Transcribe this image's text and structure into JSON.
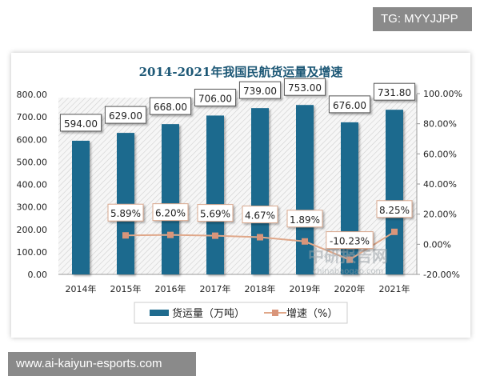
{
  "overlay": {
    "top_right_tag": "TG: MYYJJPP",
    "bottom_left_tag": "www.ai-kaiyun-esports.com"
  },
  "watermark": {
    "name": "中研报告网",
    "url": "chinabaogao.com"
  },
  "chart_data": {
    "type": "bar+line",
    "title": "2014-2021年我国民航货运量及增速",
    "categories": [
      "2014年",
      "2015年",
      "2016年",
      "2017年",
      "2018年",
      "2019年",
      "2020年",
      "2021年"
    ],
    "series": [
      {
        "name": "货运量（万吨）",
        "type": "bar",
        "axis": "left",
        "color": "#1f6b8e",
        "values": [
          594.0,
          629.0,
          668.0,
          706.0,
          739.0,
          753.0,
          676.0,
          731.8
        ],
        "labels": [
          "594.00",
          "629.00",
          "668.00",
          "706.00",
          "739.00",
          "753.00",
          "676.00",
          "731.80"
        ]
      },
      {
        "name": "增速（%）",
        "type": "line",
        "axis": "right",
        "color": "#e0a88a",
        "values": [
          null,
          5.89,
          6.2,
          5.69,
          4.67,
          1.89,
          -10.23,
          8.25
        ],
        "labels": [
          "",
          "5.89%",
          "6.20%",
          "5.69%",
          "4.67%",
          "1.89%",
          "-10.23%",
          "8.25%"
        ]
      }
    ],
    "left_axis": {
      "range": [
        0,
        800
      ],
      "ticks": [
        "0.00",
        "100.00",
        "200.00",
        "300.00",
        "400.00",
        "500.00",
        "600.00",
        "700.00",
        "800.00"
      ]
    },
    "right_axis": {
      "range": [
        -20,
        100
      ],
      "ticks": [
        "-20.00%",
        "0.00%",
        "20.00%",
        "40.00%",
        "60.00%",
        "80.00%",
        "100.00%"
      ]
    },
    "legend_position": "bottom",
    "grid": false
  }
}
